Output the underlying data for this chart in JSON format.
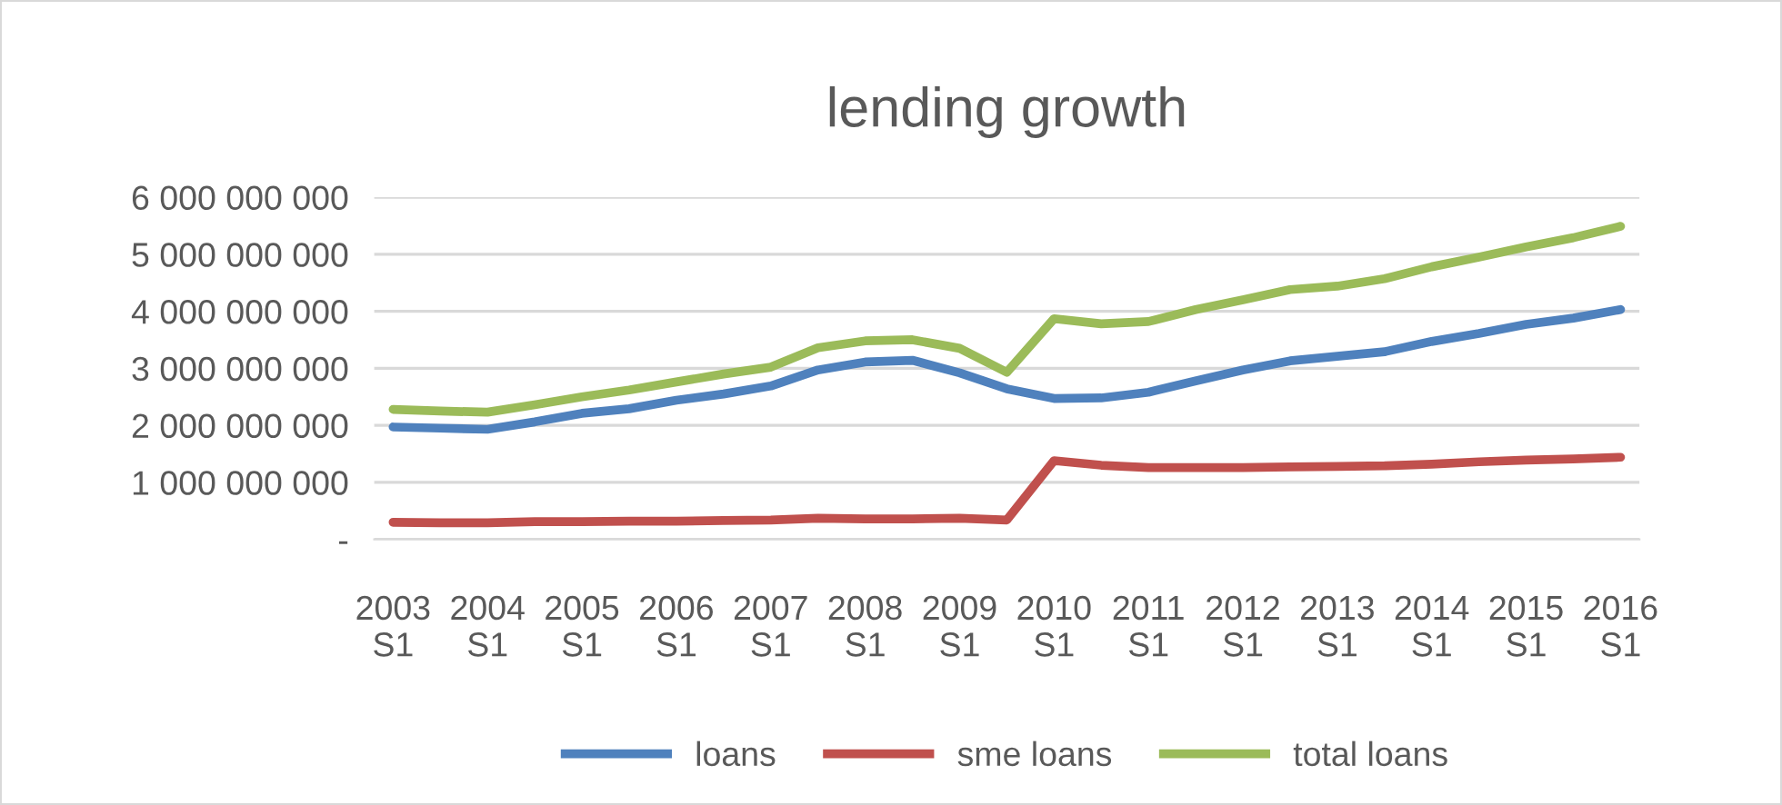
{
  "chart_data": {
    "type": "line",
    "title": "lending growth",
    "categories": [
      "2003 S1",
      null,
      "2004 S1",
      null,
      "2005 S1",
      null,
      "2006 S1",
      null,
      "2007 S1",
      null,
      "2008 S1",
      null,
      "2009 S1",
      null,
      "2010 S1",
      null,
      "2011 S1",
      null,
      "2012 S1",
      null,
      "2013 S1",
      null,
      "2014 S1",
      null,
      "2015 S1",
      null,
      "2016 S1"
    ],
    "series": [
      {
        "name": "loans",
        "color": "#4f81bd",
        "values": [
          1970000000,
          1950000000,
          1930000000,
          2060000000,
          2210000000,
          2290000000,
          2440000000,
          2550000000,
          2690000000,
          2970000000,
          3110000000,
          3140000000,
          2920000000,
          2640000000,
          2470000000,
          2480000000,
          2580000000,
          2780000000,
          2970000000,
          3130000000,
          3210000000,
          3290000000,
          3470000000,
          3610000000,
          3770000000,
          3880000000,
          4030000000
        ]
      },
      {
        "name": "sme loans",
        "color": "#c0504d",
        "values": [
          300000000,
          290000000,
          290000000,
          310000000,
          310000000,
          320000000,
          320000000,
          330000000,
          340000000,
          370000000,
          360000000,
          360000000,
          370000000,
          340000000,
          1380000000,
          1300000000,
          1260000000,
          1260000000,
          1260000000,
          1270000000,
          1280000000,
          1290000000,
          1320000000,
          1360000000,
          1390000000,
          1410000000,
          1440000000
        ]
      },
      {
        "name": "total loans",
        "color": "#9bbb59",
        "values": [
          2280000000,
          2250000000,
          2230000000,
          2360000000,
          2500000000,
          2620000000,
          2760000000,
          2900000000,
          3020000000,
          3360000000,
          3480000000,
          3500000000,
          3350000000,
          2930000000,
          3870000000,
          3780000000,
          3820000000,
          4030000000,
          4200000000,
          4380000000,
          4440000000,
          4570000000,
          4780000000,
          4950000000,
          5130000000,
          5290000000,
          5490000000
        ]
      }
    ],
    "ylim": [
      0,
      6000000000
    ],
    "yticks": [
      {
        "value": 0,
        "label": "-"
      },
      {
        "value": 1000000000,
        "label": "1 000 000 000"
      },
      {
        "value": 2000000000,
        "label": "2 000 000 000"
      },
      {
        "value": 3000000000,
        "label": "3 000 000 000"
      },
      {
        "value": 4000000000,
        "label": "4 000 000 000"
      },
      {
        "value": 5000000000,
        "label": "5 000 000 000"
      },
      {
        "value": 6000000000,
        "label": "6 000 000 000"
      }
    ],
    "grid": "y",
    "legend": "bottom",
    "marker": "none",
    "line_style": "solid"
  }
}
